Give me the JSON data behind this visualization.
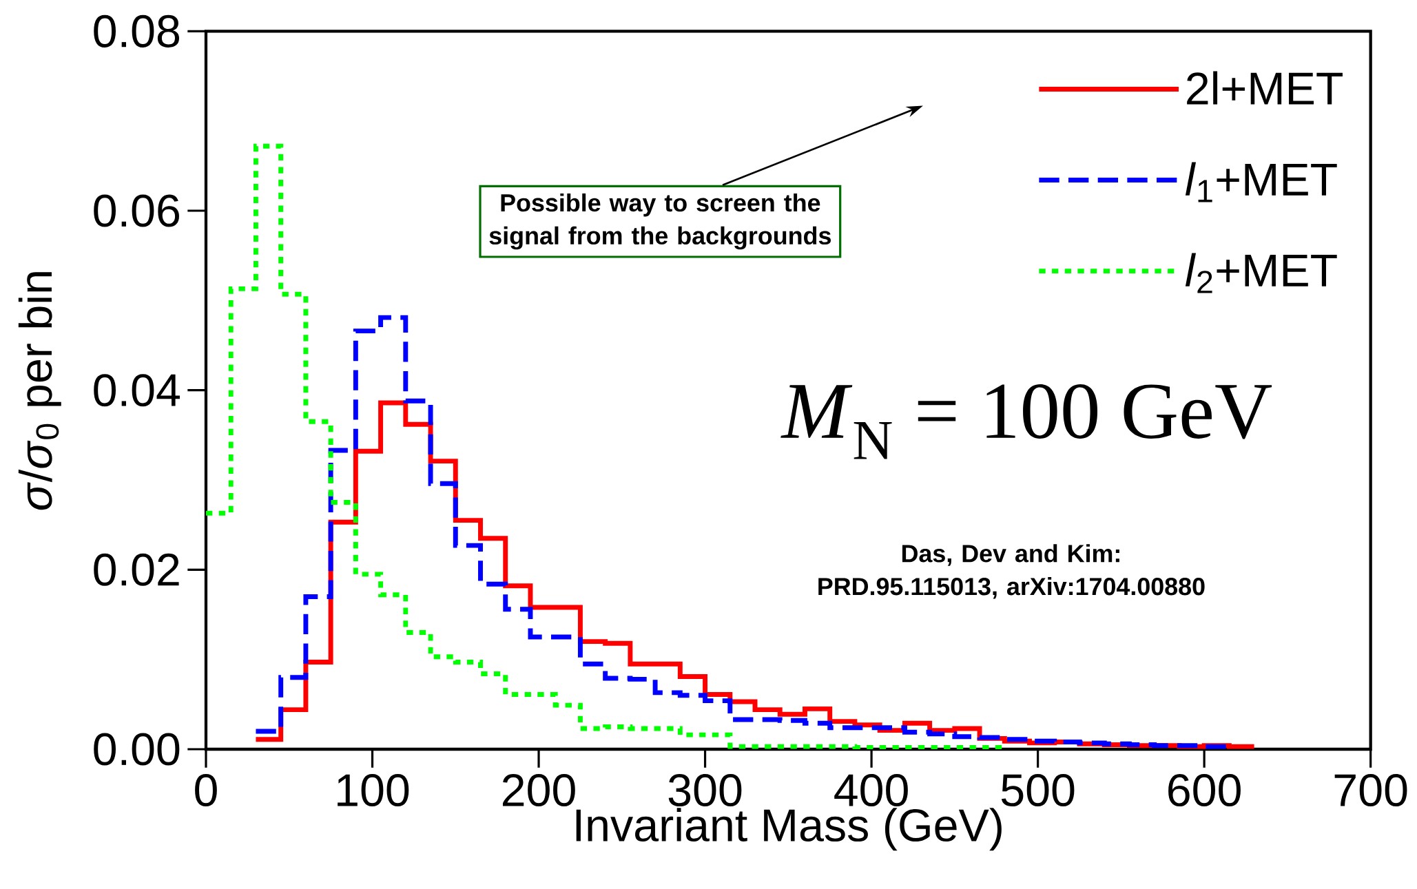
{
  "chart_data": {
    "type": "step",
    "xlabel": "Invariant Mass (GeV)",
    "ylabel": "*σ*/*σ*$_{0}$ per bin",
    "xlim": [
      0,
      700
    ],
    "xticks": [
      0,
      100,
      200,
      300,
      400,
      500,
      600,
      700
    ],
    "ylim": [
      0,
      0.08
    ],
    "yticks": [
      {
        "value": 0,
        "label": "0.00"
      },
      {
        "value": 0.02,
        "label": "0.02"
      },
      {
        "value": 0.04,
        "label": "0.04"
      },
      {
        "value": 0.06,
        "label": "0.06"
      },
      {
        "value": 0.08,
        "label": "0.08"
      }
    ],
    "legend": "top right",
    "series": [
      {
        "name": "2l+MET",
        "color": "#ff0000",
        "line_style": "solid",
        "x": [
          30,
          45,
          60,
          75,
          90,
          105,
          120,
          135,
          150,
          165,
          180,
          195,
          210,
          225,
          240,
          255,
          270,
          285,
          300,
          315,
          330,
          345,
          360,
          375,
          390,
          405,
          420,
          435,
          450,
          465,
          480,
          495,
          510,
          525,
          540,
          555,
          570,
          585,
          600,
          615,
          630
        ],
        "values": [
          0.0011,
          0.0044,
          0.0097,
          0.0253,
          0.0332,
          0.0386,
          0.0362,
          0.0321,
          0.0255,
          0.0235,
          0.0182,
          0.0158,
          0.0158,
          0.012,
          0.0118,
          0.0095,
          0.0095,
          0.0081,
          0.0061,
          0.0053,
          0.0044,
          0.0039,
          0.0045,
          0.0031,
          0.0027,
          0.0021,
          0.0029,
          0.0021,
          0.0023,
          0.0012,
          0.0009,
          0.0007,
          0.0008,
          0.0006,
          0.0005,
          0.0004,
          0.0004,
          0.0003,
          0.0004,
          0.0003,
          0.0003
        ]
      },
      {
        "name": "*l*$_{1}$+MET",
        "color": "#0000ff",
        "line_style": "dashed",
        "x": [
          30,
          45,
          60,
          75,
          90,
          105,
          120,
          135,
          150,
          165,
          180,
          195,
          210,
          225,
          240,
          255,
          270,
          285,
          300,
          315,
          330,
          345,
          360,
          375,
          390,
          405,
          420,
          435,
          450,
          465,
          480,
          495,
          510,
          525,
          540,
          555,
          570,
          585,
          600,
          615
        ],
        "values": [
          0.002,
          0.008,
          0.017,
          0.0333,
          0.0466,
          0.0481,
          0.0388,
          0.0296,
          0.0227,
          0.0184,
          0.0156,
          0.0125,
          0.0125,
          0.0095,
          0.0079,
          0.0078,
          0.0063,
          0.006,
          0.0054,
          0.0033,
          0.0033,
          0.0032,
          0.0029,
          0.0024,
          0.0024,
          0.0024,
          0.0019,
          0.0017,
          0.0014,
          0.0013,
          0.0011,
          0.0009,
          0.0008,
          0.0007,
          0.0006,
          0.0005,
          0.0004,
          0.0004,
          0.0003,
          0.0003
        ]
      },
      {
        "name": "*l*$_{2}$+MET",
        "color": "#00ff00",
        "line_style": "dotted",
        "x": [
          0,
          15,
          30,
          45,
          60,
          75,
          90,
          105,
          120,
          135,
          150,
          165,
          180,
          195,
          210,
          225,
          240,
          255,
          270,
          285,
          300,
          315,
          330,
          345,
          360,
          375,
          390,
          405,
          420,
          435,
          450,
          465,
          480
        ],
        "values": [
          0.0263,
          0.0513,
          0.0672,
          0.0507,
          0.0365,
          0.0275,
          0.0195,
          0.0172,
          0.013,
          0.0103,
          0.0097,
          0.0084,
          0.0061,
          0.0061,
          0.0049,
          0.0023,
          0.0025,
          0.0023,
          0.0023,
          0.0016,
          0.0016,
          0.0003,
          0.0003,
          0.0003,
          0.0003,
          0.0003,
          0.0002,
          0.0002,
          0.0002,
          0.0002,
          0.0002,
          0.0002,
          0.0002
        ]
      }
    ],
    "annotations": [
      "Possible way to screen the signal from the backgrounds",
      "*M*$_{N}$ = 100 GeV",
      "Das, Dev and Kim: PRD.95.115013, arXiv:1704.00880"
    ]
  }
}
